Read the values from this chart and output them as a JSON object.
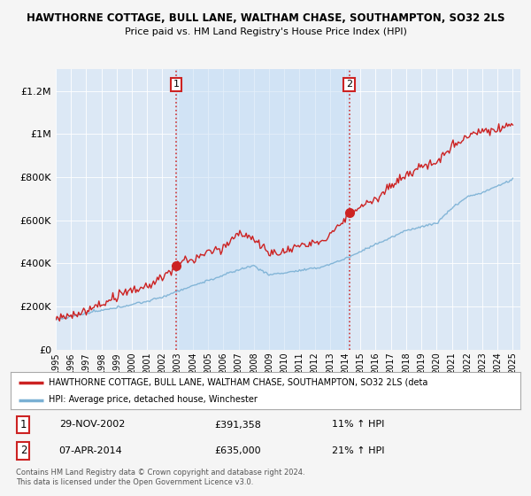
{
  "title": "HAWTHORNE COTTAGE, BULL LANE, WALTHAM CHASE, SOUTHAMPTON, SO32 2LS",
  "subtitle": "Price paid vs. HM Land Registry's House Price Index (HPI)",
  "background_color": "#f5f5f5",
  "plot_bg_color": "#dce8f5",
  "highlight_color": "#c8dff5",
  "legend_label_red": "HAWTHORNE COTTAGE, BULL LANE, WALTHAM CHASE, SOUTHAMPTON, SO32 2LS (deta",
  "legend_label_blue": "HPI: Average price, detached house, Winchester",
  "sale1_date": "29-NOV-2002",
  "sale1_price": "£391,358",
  "sale1_hpi": "11% ↑ HPI",
  "sale2_date": "07-APR-2014",
  "sale2_price": "£635,000",
  "sale2_hpi": "21% ↑ HPI",
  "copyright_text": "Contains HM Land Registry data © Crown copyright and database right 2024.\nThis data is licensed under the Open Government Licence v3.0.",
  "ylim": [
    0,
    1300000
  ],
  "yticks": [
    0,
    200000,
    400000,
    600000,
    800000,
    1000000,
    1200000
  ],
  "red_color": "#cc2222",
  "blue_color": "#7ab0d4",
  "sale1_x": 2002.91,
  "sale2_x": 2014.27,
  "xmin": 1995,
  "xmax": 2025.5
}
